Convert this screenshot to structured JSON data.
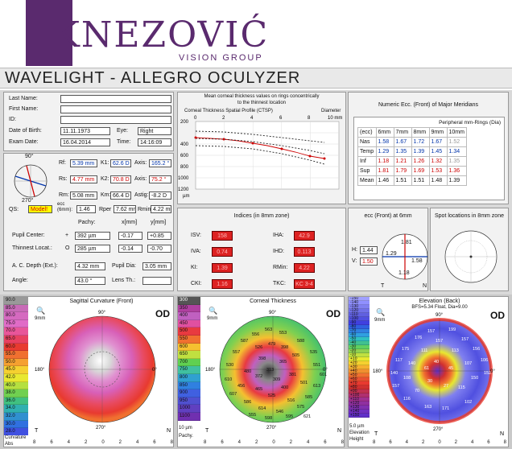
{
  "header": {
    "logo_text": "KNEZOVIĆ",
    "logo_sub": "VISION GROUP",
    "title": "WAVELIGHT  -  ALLEGRO OCULYZER"
  },
  "patient": {
    "last_name_label": "Last Name:",
    "first_name_label": "First Name:",
    "id_label": "ID:",
    "dob_label": "Date of Birth:",
    "dob": "11.11.1973",
    "eye_label": "Eye:",
    "eye": "Right",
    "exam_label": "Exam Date:",
    "exam": "16.04.2014",
    "time_label": "Time:",
    "time": "14:16:09"
  },
  "kera": {
    "rf_label": "Rf:",
    "rf": "5.39 mm",
    "k1_label": "K1:",
    "k1": "62.6 D",
    "axis1_label": "Axis:",
    "axis1": "165.2 °",
    "rs_label": "Rs:",
    "rs": "4.77 mm",
    "k2_label": "K2:",
    "k2": "70.8 D",
    "axis2_label": "Axis:",
    "axis2": "75.2 °",
    "rm_label": "Rm:",
    "rm": "5.08 mm",
    "km_label": "Km:",
    "km": "66.4 D",
    "astig_label": "Astig:",
    "astig": "-8.2 D",
    "qs_label": "QS:",
    "qs": "Model!",
    "ecc_label": "ecc (6mm):",
    "ecc": "1.46",
    "rper_label": "Rper",
    "rper": "7.62 mm",
    "rmin_label": "Rmin",
    "rmin": "4.22 mm",
    "pachy_label": "Pachy:",
    "xmm_label": "x[mm]",
    "ymm_label": "y[mm]",
    "pupil_label": "Pupil Center:",
    "pupil_sym": "+",
    "pupil_pachy": "392 µm",
    "pupil_x": "-0.17",
    "pupil_y": "+0.85",
    "thin_label": "Thinnest Locat.:",
    "thin_sym": "O",
    "thin_pachy": "285 µm",
    "thin_x": "-0.14",
    "thin_y": "-0.70",
    "acd_label": "A. C. Depth (Ext.):",
    "acd": "4.32 mm",
    "pupdia_label": "Pupil Dia:",
    "pupdia": "3.05 mm",
    "angle_label": "Angle:",
    "angle": "43.0 °",
    "lens_label": "Lens Th.:",
    "lens": "",
    "deg90": "90°",
    "deg270": "270°"
  },
  "ctsp": {
    "title1": "Mean corneal thickness values on rings concentrically",
    "title2": "to the thinnest location",
    "subtitle": "Corneal Thickness Spatial Profile (CTSP)",
    "diam_label": "Diameter",
    "xticks": [
      "0",
      "2",
      "4",
      "6",
      "8",
      "10 mm"
    ],
    "yticks": [
      "200",
      "400",
      "600",
      "800",
      "1000",
      "1200"
    ],
    "yunit": "µm"
  },
  "ecc_table": {
    "title": "Numeric Ecc. (Front) of Major Meridians",
    "header_group": "Peripheral mm-Rings (Dia)",
    "cols": [
      "(ecc)",
      "6mm",
      "7mm",
      "8mm",
      "9mm",
      "10mm"
    ],
    "rows": [
      {
        "name": "Nas",
        "v": [
          "1.58",
          "1.67",
          "1.72",
          "1.67",
          "1.52"
        ]
      },
      {
        "name": "Temp",
        "v": [
          "1.29",
          "1.35",
          "1.39",
          "1.45",
          "1.34"
        ]
      },
      {
        "name": "Inf",
        "v": [
          "1.18",
          "1.21",
          "1.26",
          "1.32",
          "1.35"
        ]
      },
      {
        "name": "Sup",
        "v": [
          "1.81",
          "1.79",
          "1.69",
          "1.53",
          "1.36"
        ]
      },
      {
        "name": "Mean",
        "v": [
          "1.46",
          "1.51",
          "1.51",
          "1.48",
          "1.39"
        ]
      }
    ]
  },
  "indices": {
    "title": "Indices (in 8mm zone)",
    "isv_label": "ISV:",
    "isv": "158",
    "iha_label": "IHA:",
    "iha": "42.9",
    "iva_label": "IVA:",
    "iva": "0.74",
    "ihd_label": "IHD:",
    "ihd": "0.113",
    "ki_label": "KI:",
    "ki": "1.39",
    "rmin_label": "RMin:",
    "rmin": "4.22",
    "cki_label": "CKI:",
    "cki": "1.16",
    "tkc_label": "TKC:",
    "tkc": "KC 3-4"
  },
  "ecc6": {
    "title": "ecc (Front) at 6mm",
    "h_label": "H:",
    "h": "1.44",
    "v_label": "V:",
    "v": "1.50",
    "top": "1.81",
    "left": "1.29",
    "right": "1.58",
    "bottom": "1.18",
    "t": "T",
    "n": "N"
  },
  "spots": {
    "title": "Spot locations in 8mm zone"
  },
  "sag": {
    "title": "Sagittal Curvature (Front)",
    "od": "OD",
    "scale_top": "90.0",
    "scale": [
      "90.0",
      "85.0",
      "80.0",
      "75.0",
      "70.0",
      "65.0",
      "60.0",
      "55.0",
      "50.0",
      "45.0",
      "42.0",
      "40.0",
      "38.0",
      "36.0",
      "34.0",
      "32.0",
      "30.0",
      "28.0",
      "26.0",
      "24.0",
      "20.0",
      "10.0",
      "0"
    ],
    "scale_foot1": "Curvature",
    "scale_foot2": "Abs",
    "zoom": "9mm",
    "deg90": "90°",
    "deg180": "180°",
    "deg0": "0°",
    "deg270": "270°",
    "t": "T",
    "n": "N",
    "ticks": [
      "8",
      "6",
      "4",
      "2",
      "0",
      "2",
      "4",
      "6",
      "8"
    ]
  },
  "thick": {
    "title": "Corneal Thickness",
    "od": "OD",
    "scale": [
      "300",
      "350",
      "400",
      "450",
      "500",
      "550",
      "600",
      "650",
      "700",
      "750",
      "800",
      "850",
      "900",
      "950",
      "1000",
      "1100"
    ],
    "scale_foot1": "10 µm",
    "scale_foot2": "Pachy.",
    "zoom": "9mm",
    "vals": [
      "563",
      "553",
      "556",
      "587",
      "588",
      "479",
      "398",
      "526",
      "557",
      "535",
      "505",
      "398",
      "365",
      "313",
      "530",
      "551",
      "601",
      "480",
      "372",
      "309",
      "381",
      "501",
      "610",
      "613",
      "456",
      "400",
      "465",
      "607",
      "525",
      "585",
      "516",
      "586",
      "575",
      "614",
      "546",
      "555",
      "595",
      "598",
      "621"
    ],
    "deg90": "90°",
    "deg180": "180°",
    "deg0": "0°",
    "deg270": "270°",
    "t": "T",
    "n": "N",
    "ticks": [
      "8",
      "6",
      "4",
      "2",
      "0",
      "2",
      "4",
      "6",
      "8"
    ]
  },
  "elev": {
    "title": "Elevation (Back)",
    "subtitle": "BFS=5.34 Float, Dia=9.00",
    "od": "OD",
    "scale": [
      "-150",
      "-140",
      "-130",
      "-120",
      "-110",
      "-100",
      "-90",
      "-80",
      "-70",
      "-60",
      "-50",
      "-40",
      "-30",
      "-20",
      "-10",
      "+10",
      "+20",
      "+30",
      "+40",
      "+50",
      "+60",
      "+70",
      "+80",
      "+90",
      "+100",
      "+110",
      "+120",
      "+130",
      "+140",
      "+150"
    ],
    "scale_foot1": "5.0 µm",
    "scale_foot2": "Elevation",
    "scale_foot3": "Height",
    "zoom": "9mm",
    "vals": [
      "157",
      "199",
      "176",
      "157",
      "157",
      "175",
      "156",
      "111",
      "113",
      "117",
      "106",
      "140",
      "107",
      "140",
      "152",
      "108",
      "150",
      "157",
      "61",
      "45",
      "40",
      "115",
      "30",
      "27",
      "70",
      "116",
      "163",
      "171",
      "102"
    ],
    "deg90": "90°",
    "deg180": "180°",
    "deg0": "0°",
    "deg270": "270°",
    "t": "T",
    "n": "N",
    "ticks": [
      "8",
      "6",
      "4",
      "2",
      "0",
      "2",
      "4",
      "6",
      "8"
    ]
  },
  "colors": {
    "logo": "#5a2a6e",
    "accent_red": "#cc0000",
    "index_red": "#d22222",
    "blue": "#0033aa"
  }
}
